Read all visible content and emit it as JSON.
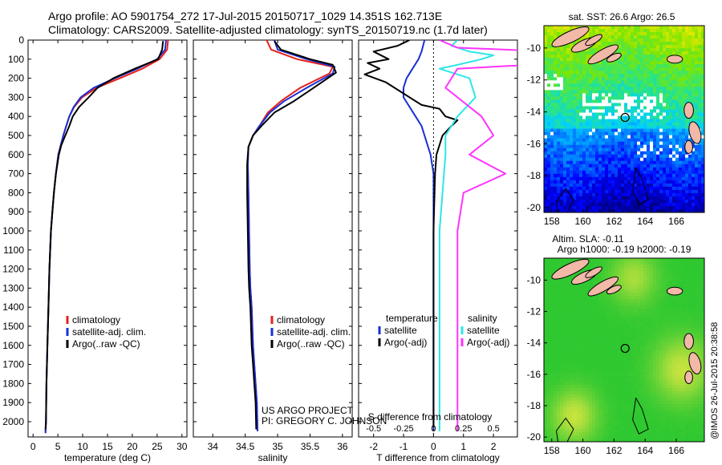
{
  "header": {
    "line1": "Argo profile: AO 5901754_272 17-Jul-2015 20150717_1029 14.351S 162.713E",
    "line2": "Climatology: CARS2009. Satellite-adjusted climatology: synTS_20150719.nc (1.7d later)"
  },
  "credit": "@IMOS 26-Jul-2015 20:38:58",
  "project": {
    "line1": "US ARGO PROJECT",
    "line2": "PI: GREGORY C. JOHNSON"
  },
  "colors": {
    "climatology": "#e8201a",
    "satellite": "#1a2fd6",
    "argo": "#000000",
    "sal_satellite": "#2ee6e6",
    "sal_argo": "#ff33ff",
    "land": "#f2b8a8"
  },
  "chart_data": [
    {
      "type": "line",
      "id": "temperature",
      "xlabel": "temperature (deg C)",
      "xlim": [
        -1,
        31
      ],
      "xticks": [
        0,
        5,
        10,
        15,
        20,
        25,
        30
      ],
      "ylim": [
        0,
        2080
      ],
      "yticks": [
        0,
        100,
        200,
        300,
        400,
        500,
        600,
        700,
        800,
        900,
        1000,
        1100,
        1200,
        1300,
        1400,
        1500,
        1600,
        1700,
        1800,
        1900,
        2000
      ],
      "legend": {
        "placement": "bottom-left",
        "entries": [
          "climatology",
          "satellite-adj. clim.",
          "Argo(..raw -QC)"
        ]
      },
      "series": [
        {
          "name": "climatology",
          "x": [
            27.2,
            27.0,
            25.5,
            22.0,
            17.5,
            12.8,
            9.9,
            8.3,
            7.3,
            6.7,
            6.1,
            5.6,
            5.1,
            4.6,
            4.2,
            3.9,
            3.6,
            3.3,
            3.1,
            2.9,
            2.7,
            2.6,
            2.5
          ],
          "y": [
            0,
            50,
            100,
            150,
            200,
            250,
            300,
            350,
            400,
            450,
            500,
            550,
            600,
            700,
            800,
            900,
            1000,
            1200,
            1400,
            1600,
            1800,
            2000,
            2060
          ]
        },
        {
          "name": "satellite-adj. clim.",
          "x": [
            26.8,
            26.6,
            25.0,
            21.0,
            16.5,
            12.2,
            9.6,
            8.2,
            7.3,
            6.7,
            6.1,
            5.6,
            5.1,
            4.6,
            4.2,
            3.9,
            3.6,
            3.3,
            3.1,
            2.9,
            2.7,
            2.6,
            2.5
          ],
          "y": [
            0,
            50,
            100,
            150,
            200,
            250,
            300,
            350,
            400,
            450,
            500,
            550,
            600,
            700,
            800,
            900,
            1000,
            1200,
            1400,
            1600,
            1800,
            2000,
            2060
          ]
        },
        {
          "name": "Argo(..raw -QC)",
          "x": [
            26.2,
            26.0,
            25.2,
            20.5,
            16.2,
            13.0,
            11.2,
            9.3,
            8.0,
            7.3,
            6.5,
            5.7,
            5.2,
            4.6,
            4.2,
            3.9,
            3.6,
            3.3,
            3.1,
            2.9,
            2.7,
            2.6,
            2.5
          ],
          "y": [
            5,
            50,
            100,
            150,
            200,
            250,
            300,
            350,
            400,
            450,
            500,
            550,
            600,
            700,
            800,
            900,
            1000,
            1200,
            1400,
            1600,
            1800,
            2000,
            2040
          ]
        }
      ]
    },
    {
      "type": "line",
      "id": "salinity",
      "xlabel": "salinity",
      "xlim": [
        33.7,
        36.15
      ],
      "xticks": [
        34,
        34.5,
        35,
        35.5,
        36
      ],
      "xticklabels": [
        "34",
        "34.5",
        "35",
        "35.5",
        "36"
      ],
      "ylim": [
        0,
        2080
      ],
      "legend": {
        "placement": "bottom-left",
        "entries": [
          "climatology",
          "satellite-adj. clim.",
          "Argo(..raw -QC)"
        ]
      },
      "series": [
        {
          "name": "climatology",
          "x": [
            34.83,
            34.9,
            35.3,
            35.85,
            35.8,
            35.35,
            35.05,
            34.85,
            34.72,
            34.62,
            34.55,
            34.54,
            34.55,
            34.56,
            34.57,
            34.58,
            34.6,
            34.62,
            34.64,
            34.66,
            34.68,
            34.69
          ],
          "y": [
            0,
            50,
            100,
            140,
            175,
            250,
            320,
            380,
            450,
            500,
            560,
            650,
            800,
            1000,
            1200,
            1300,
            1400,
            1600,
            1700,
            1800,
            1900,
            2050
          ]
        },
        {
          "name": "satellite-adj. clim.",
          "x": [
            34.95,
            35.0,
            35.45,
            35.88,
            35.85,
            35.45,
            35.1,
            34.88,
            34.72,
            34.62,
            34.55,
            34.54,
            34.55,
            34.56,
            34.57,
            34.58,
            34.6,
            34.62,
            34.64,
            34.66,
            34.68,
            34.69
          ],
          "y": [
            0,
            50,
            100,
            140,
            175,
            250,
            320,
            380,
            450,
            500,
            560,
            650,
            800,
            1000,
            1200,
            1300,
            1400,
            1600,
            1700,
            1800,
            1900,
            2050
          ]
        },
        {
          "name": "Argo(..raw -QC)",
          "x": [
            34.95,
            35.05,
            35.5,
            35.85,
            35.9,
            35.6,
            35.25,
            34.95,
            34.75,
            34.62,
            34.55,
            34.53,
            34.53,
            34.54,
            34.55,
            34.56,
            34.58,
            34.6,
            34.62,
            34.64,
            34.66,
            34.67
          ],
          "y": [
            5,
            50,
            100,
            130,
            170,
            240,
            320,
            380,
            450,
            500,
            560,
            650,
            800,
            1000,
            1200,
            1300,
            1400,
            1600,
            1700,
            1800,
            1900,
            2040
          ]
        }
      ]
    },
    {
      "type": "line",
      "id": "difference",
      "xlabel_bottom": "T difference from climatology",
      "xlabel_top": "S difference from climatology",
      "xlim": [
        -2.5,
        2.8
      ],
      "t_ticks": [
        -2,
        -1,
        0,
        1,
        2
      ],
      "s_ticks": [
        -0.5,
        -0.25,
        0,
        0.25,
        0.5
      ],
      "s_ticklabels": [
        "-0.5",
        "-0.25",
        "0",
        "0.25",
        "0.5"
      ],
      "s_scale_note": "",
      "ylim": [
        0,
        2080
      ],
      "legend": {
        "placement": "bottom",
        "temperature_title": "temperature",
        "salinity_title": "salinity",
        "entries": [
          "satellite",
          "Argo(-adj)",
          "satellite",
          "Argo(-adj)"
        ]
      },
      "series": [
        {
          "name": "T satellite",
          "x": [
            -0.3,
            -0.4,
            -0.5,
            -0.7,
            -0.9,
            -1.0,
            -1.0,
            -0.8,
            -0.6,
            -0.4,
            -0.3,
            -0.2,
            -0.1,
            -0.05,
            0,
            0,
            0
          ],
          "y": [
            0,
            60,
            100,
            150,
            200,
            250,
            300,
            350,
            400,
            450,
            500,
            550,
            600,
            650,
            700,
            1300,
            2050
          ]
        },
        {
          "name": "T Argo(-adj)",
          "x": [
            -0.8,
            -1.2,
            -2.0,
            -1.5,
            -2.2,
            -1.8,
            -2.3,
            -1.6,
            -1.0,
            -0.4,
            0.2,
            0.4,
            0.8,
            0.6,
            0.3,
            0.1,
            0.05,
            0,
            0
          ],
          "y": [
            0,
            30,
            60,
            100,
            120,
            150,
            180,
            220,
            280,
            340,
            360,
            400,
            420,
            450,
            500,
            600,
            700,
            1000,
            2030
          ]
        },
        {
          "name": "S satellite",
          "x": [
            0.2,
            0.15,
            0.3,
            0.5,
            0.4,
            0.2,
            0.05,
            0.3,
            0.35,
            0.2,
            0.1,
            0.1,
            0.05,
            0.05
          ],
          "y": [
            0,
            30,
            60,
            80,
            100,
            130,
            150,
            200,
            300,
            400,
            500,
            600,
            1000,
            2050
          ]
        },
        {
          "name": "S Argo(-adj)",
          "x": [
            0.05,
            0.2,
            1.0,
            2.4,
            1.5,
            0.8,
            0.2,
            0.1,
            0.4,
            0.5,
            0.3,
            0.45,
            0.6,
            0.25,
            0.2,
            0.2
          ],
          "y": [
            0,
            40,
            60,
            80,
            100,
            130,
            150,
            250,
            400,
            500,
            600,
            650,
            700,
            800,
            1000,
            2050
          ]
        }
      ]
    },
    {
      "type": "heatmap",
      "id": "sst-map",
      "title": "sat. SST: 26.6 Argo: 26.5",
      "xlim": [
        157.5,
        167.8
      ],
      "ylim": [
        -20.3,
        -8.6
      ],
      "xticks": [
        158,
        160,
        162,
        164,
        166
      ],
      "yticks": [
        -10,
        -12,
        -14,
        -16,
        -18,
        -20
      ],
      "profile_location": {
        "lon": 162.713,
        "lat": -14.351
      }
    },
    {
      "type": "heatmap",
      "id": "sla-map",
      "title_line1": "Altim. SLA: -0.11",
      "title_line2": "Argo h1000: -0.19 h2000: -0.19",
      "xlim": [
        157.5,
        167.8
      ],
      "ylim": [
        -20.3,
        -8.6
      ],
      "xticks": [
        158,
        160,
        162,
        164,
        166
      ],
      "yticks": [
        -10,
        -12,
        -14,
        -16,
        -18,
        -20
      ],
      "profile_location": {
        "lon": 162.713,
        "lat": -14.351
      }
    }
  ]
}
